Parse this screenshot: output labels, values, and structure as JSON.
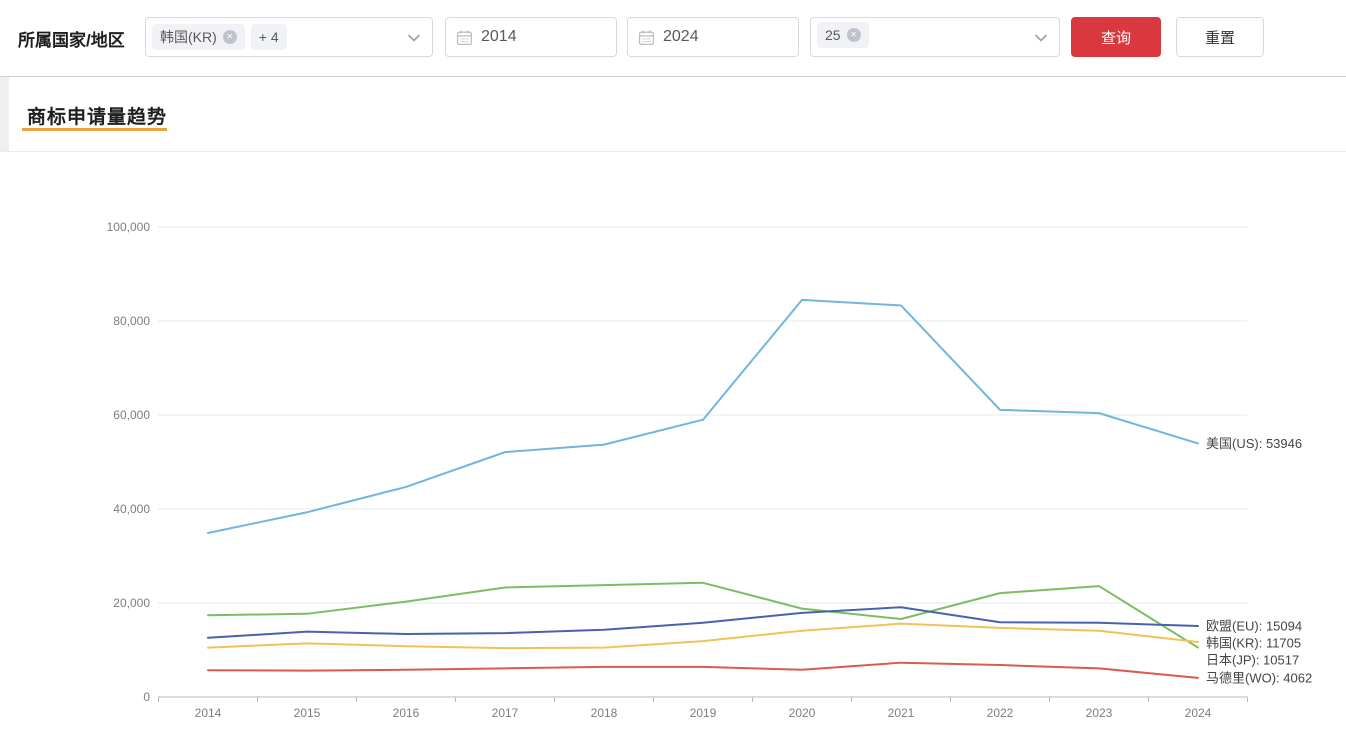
{
  "filter_bar": {
    "label": "所属国家/地区",
    "country_select": {
      "selected_tag": "韩国(KR)",
      "more_tag": "+ 4"
    },
    "date_from": "2014",
    "date_to": "2024",
    "count_select": {
      "selected_tag": "25"
    },
    "query_button": "查询",
    "reset_button": "重置"
  },
  "section_title": "商标申请量趋势",
  "icons": {
    "remove": "✕"
  },
  "chart_data": {
    "type": "line",
    "x": [
      "2014",
      "2015",
      "2016",
      "2017",
      "2018",
      "2019",
      "2020",
      "2021",
      "2022",
      "2023",
      "2024"
    ],
    "series": [
      {
        "name": "美国(US)",
        "color": "#72b5dd",
        "values": [
          34900,
          39300,
          44700,
          52100,
          53700,
          59000,
          84500,
          83300,
          61100,
          60400,
          53946
        ],
        "end_label": "美国(US): 53946"
      },
      {
        "name": "日本(JP)",
        "color": "#7dbd62",
        "values": [
          17400,
          17700,
          20300,
          23300,
          23800,
          24300,
          18800,
          16600,
          22100,
          23600,
          10517
        ],
        "end_label": "日本(JP): 10517"
      },
      {
        "name": "欧盟(EU)",
        "color": "#4763ae",
        "values": [
          12600,
          13900,
          13400,
          13600,
          14300,
          15800,
          17900,
          19100,
          15900,
          15800,
          15094
        ],
        "end_label": "欧盟(EU): 15094"
      },
      {
        "name": "韩国(KR)",
        "color": "#f2c25a",
        "values": [
          10500,
          11400,
          10800,
          10400,
          10500,
          11900,
          14100,
          15600,
          14700,
          14100,
          11705
        ],
        "end_label": "韩国(KR): 11705"
      },
      {
        "name": "马德里(WO)",
        "color": "#dc5a52",
        "values": [
          5700,
          5600,
          5800,
          6100,
          6400,
          6400,
          5800,
          7300,
          6800,
          6100,
          4062
        ],
        "end_label": "马德里(WO): 4062"
      }
    ],
    "title": "商标申请量趋势",
    "xlabel": "",
    "ylabel": "",
    "ylim": [
      0,
      100000
    ],
    "y_ticks": [
      0,
      20000,
      40000,
      60000,
      80000,
      100000
    ],
    "grid": true,
    "legend_position": "right-of-line-ends"
  }
}
